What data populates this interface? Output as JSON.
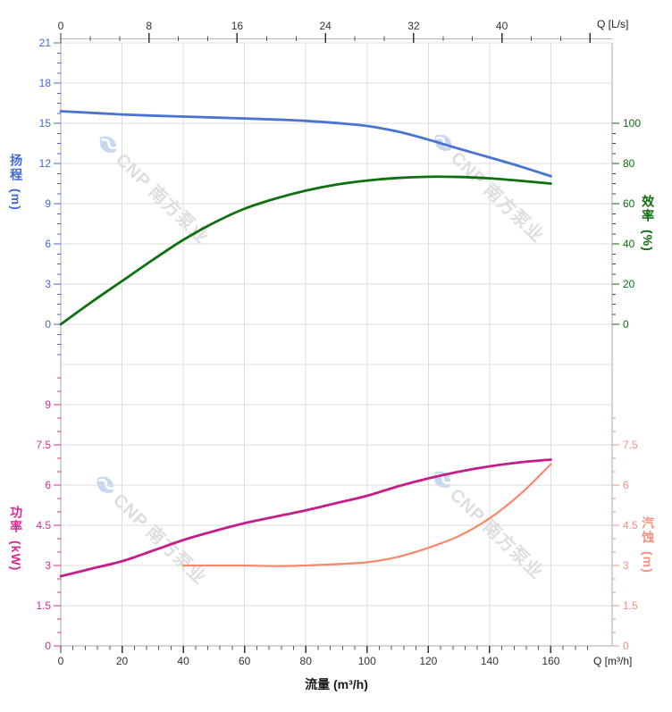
{
  "watermark": {
    "brand": "CNP 南方泵业",
    "logo": "cnp-eye-logo"
  },
  "axes": {
    "top": {
      "unit_label": "Q [L/s]",
      "tick_labels": [
        0,
        8,
        16,
        24,
        32,
        40
      ],
      "max": 50,
      "color": "#333333"
    },
    "bottom": {
      "unit_label": "Q [m³/h]",
      "title": "流量 (m³/h)",
      "tick_labels": [
        0,
        20,
        40,
        60,
        80,
        100,
        120,
        140,
        160
      ],
      "max": 180,
      "color": "#333333"
    },
    "head": {
      "title": "扬程",
      "unit": "(m)",
      "tick_labels": [
        0,
        3,
        6,
        9,
        12,
        15,
        18,
        21
      ],
      "color": "#4169d2"
    },
    "eff": {
      "title": "效率",
      "unit": "(%)",
      "tick_labels": [
        0,
        20,
        40,
        60,
        80,
        100
      ],
      "color": "#0e6e0e"
    },
    "power": {
      "title": "功率",
      "unit": "(kW)",
      "tick_labels": [
        0,
        1.5,
        3,
        4.5,
        6,
        7.5,
        9
      ],
      "color": "#d82b92"
    },
    "npsh": {
      "title": "汽蚀",
      "unit": "(m)",
      "tick_labels": [
        0,
        1.5,
        3,
        4.5,
        6,
        7.5
      ],
      "color": "#f4917f"
    }
  },
  "grid": {
    "line_color": "#dcdcdc",
    "frame_color": "#a8a8a8",
    "top_axis_line_color": "#b5b5b5"
  },
  "chart_data": {
    "type": "line",
    "title": "",
    "xlabel_bottom": "流量 (m³/h)",
    "xlabel_top": "Q [L/s]",
    "x_range_m3h": [
      0,
      180
    ],
    "x_range_ls": [
      0,
      50
    ],
    "legend_position": "none",
    "grid": true,
    "series": [
      {
        "name": "扬程 H (m)",
        "axis": "head",
        "color": "#4a73d2",
        "width": 2.8,
        "ylim": [
          0,
          21
        ],
        "x": [
          0,
          10,
          20,
          30,
          40,
          50,
          60,
          70,
          80,
          90,
          100,
          110,
          120,
          130,
          140,
          150,
          160
        ],
        "y": [
          15.9,
          15.78,
          15.66,
          15.57,
          15.5,
          15.43,
          15.36,
          15.28,
          15.18,
          15.02,
          14.8,
          14.38,
          13.78,
          13.1,
          12.45,
          11.78,
          11.05
        ]
      },
      {
        "name": "效率 η (%)",
        "axis": "eff",
        "color": "#0f7010",
        "width": 2.8,
        "ylim": [
          0,
          100
        ],
        "x": [
          0,
          10,
          20,
          30,
          40,
          50,
          60,
          70,
          80,
          90,
          100,
          110,
          120,
          130,
          140,
          150,
          160
        ],
        "y": [
          0,
          11,
          21.5,
          32,
          42,
          50.5,
          57.5,
          62.5,
          66.5,
          69.5,
          71.5,
          72.8,
          73.4,
          73.3,
          72.6,
          71.4,
          70
        ]
      },
      {
        "name": "功率 P (kW)",
        "axis": "power",
        "color": "#c21f8a",
        "width": 2.8,
        "ylim": [
          0,
          9
        ],
        "x": [
          0,
          10,
          20,
          30,
          40,
          50,
          60,
          70,
          80,
          90,
          100,
          110,
          120,
          130,
          140,
          150,
          160
        ],
        "y": [
          2.6,
          2.88,
          3.16,
          3.55,
          3.95,
          4.28,
          4.58,
          4.82,
          5.06,
          5.33,
          5.6,
          5.95,
          6.25,
          6.5,
          6.7,
          6.85,
          6.95
        ]
      },
      {
        "name": "汽蚀 NPSH (m)",
        "axis": "npsh",
        "color": "#f6886c",
        "width": 2.2,
        "ylim": [
          0,
          7.5
        ],
        "x": [
          40,
          50,
          60,
          70,
          80,
          90,
          100,
          110,
          120,
          130,
          140,
          150,
          160
        ],
        "y": [
          3.0,
          3.0,
          3.0,
          2.98,
          3.0,
          3.05,
          3.12,
          3.32,
          3.66,
          4.1,
          4.76,
          5.66,
          6.78
        ]
      }
    ]
  }
}
